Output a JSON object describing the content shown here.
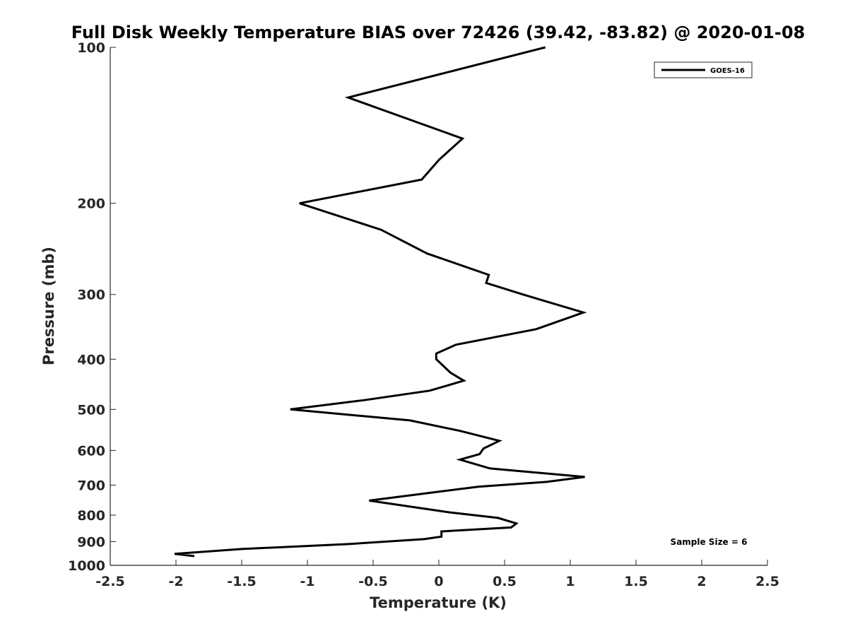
{
  "chart_data": {
    "type": "line",
    "title": "Full Disk Weekly Temperature BIAS over 72426 (39.42, -83.82) @ 2020-01-08",
    "xlabel": "Temperature (K)",
    "ylabel": "Pressure (mb)",
    "xlim": [
      -2.5,
      2.5
    ],
    "ylim": [
      1000,
      100
    ],
    "y_scale": "log",
    "y_reversed": true,
    "grid": false,
    "legend_position": "top-right",
    "x_ticks": [
      "-2.5",
      "-2",
      "-1.5",
      "-1",
      "-0.5",
      "0",
      "0.5",
      "1",
      "1.5",
      "2",
      "2.5"
    ],
    "x_tick_values": [
      -2.5,
      -2,
      -1.5,
      -1,
      -0.5,
      0,
      0.5,
      1,
      1.5,
      2,
      2.5
    ],
    "y_ticks": [
      "100",
      "200",
      "300",
      "400",
      "500",
      "600",
      "700",
      "800",
      "900",
      "1000"
    ],
    "y_tick_values": [
      100,
      200,
      300,
      400,
      500,
      600,
      700,
      800,
      900,
      1000
    ],
    "series": [
      {
        "name": "GOES-16",
        "color": "#000000",
        "points": [
          {
            "x": 0.81,
            "p": 100
          },
          {
            "x": -0.69,
            "p": 125
          },
          {
            "x": 0.18,
            "p": 150
          },
          {
            "x": 0.0,
            "p": 165
          },
          {
            "x": -0.13,
            "p": 180
          },
          {
            "x": -1.06,
            "p": 200
          },
          {
            "x": -0.44,
            "p": 225
          },
          {
            "x": -0.09,
            "p": 250
          },
          {
            "x": 0.38,
            "p": 275
          },
          {
            "x": 0.36,
            "p": 285
          },
          {
            "x": 0.64,
            "p": 300
          },
          {
            "x": 1.1,
            "p": 325
          },
          {
            "x": 0.74,
            "p": 350
          },
          {
            "x": 0.13,
            "p": 375
          },
          {
            "x": -0.02,
            "p": 390
          },
          {
            "x": -0.02,
            "p": 400
          },
          {
            "x": 0.09,
            "p": 425
          },
          {
            "x": 0.19,
            "p": 440
          },
          {
            "x": -0.07,
            "p": 460
          },
          {
            "x": -0.57,
            "p": 480
          },
          {
            "x": -1.13,
            "p": 500
          },
          {
            "x": -0.22,
            "p": 525
          },
          {
            "x": 0.16,
            "p": 550
          },
          {
            "x": 0.46,
            "p": 575
          },
          {
            "x": 0.34,
            "p": 595
          },
          {
            "x": 0.31,
            "p": 610
          },
          {
            "x": 0.16,
            "p": 625
          },
          {
            "x": 0.39,
            "p": 650
          },
          {
            "x": 1.11,
            "p": 675
          },
          {
            "x": 0.82,
            "p": 690
          },
          {
            "x": 0.3,
            "p": 705
          },
          {
            "x": -0.53,
            "p": 750
          },
          {
            "x": 0.08,
            "p": 790
          },
          {
            "x": 0.45,
            "p": 810
          },
          {
            "x": 0.59,
            "p": 830
          },
          {
            "x": 0.55,
            "p": 845
          },
          {
            "x": 0.02,
            "p": 860
          },
          {
            "x": 0.02,
            "p": 880
          },
          {
            "x": -0.11,
            "p": 890
          },
          {
            "x": -0.7,
            "p": 910
          },
          {
            "x": -1.5,
            "p": 930
          },
          {
            "x": -2.01,
            "p": 950
          },
          {
            "x": -1.86,
            "p": 960
          }
        ]
      }
    ],
    "annotations": [
      {
        "text": "Sample Size = 6"
      }
    ]
  }
}
